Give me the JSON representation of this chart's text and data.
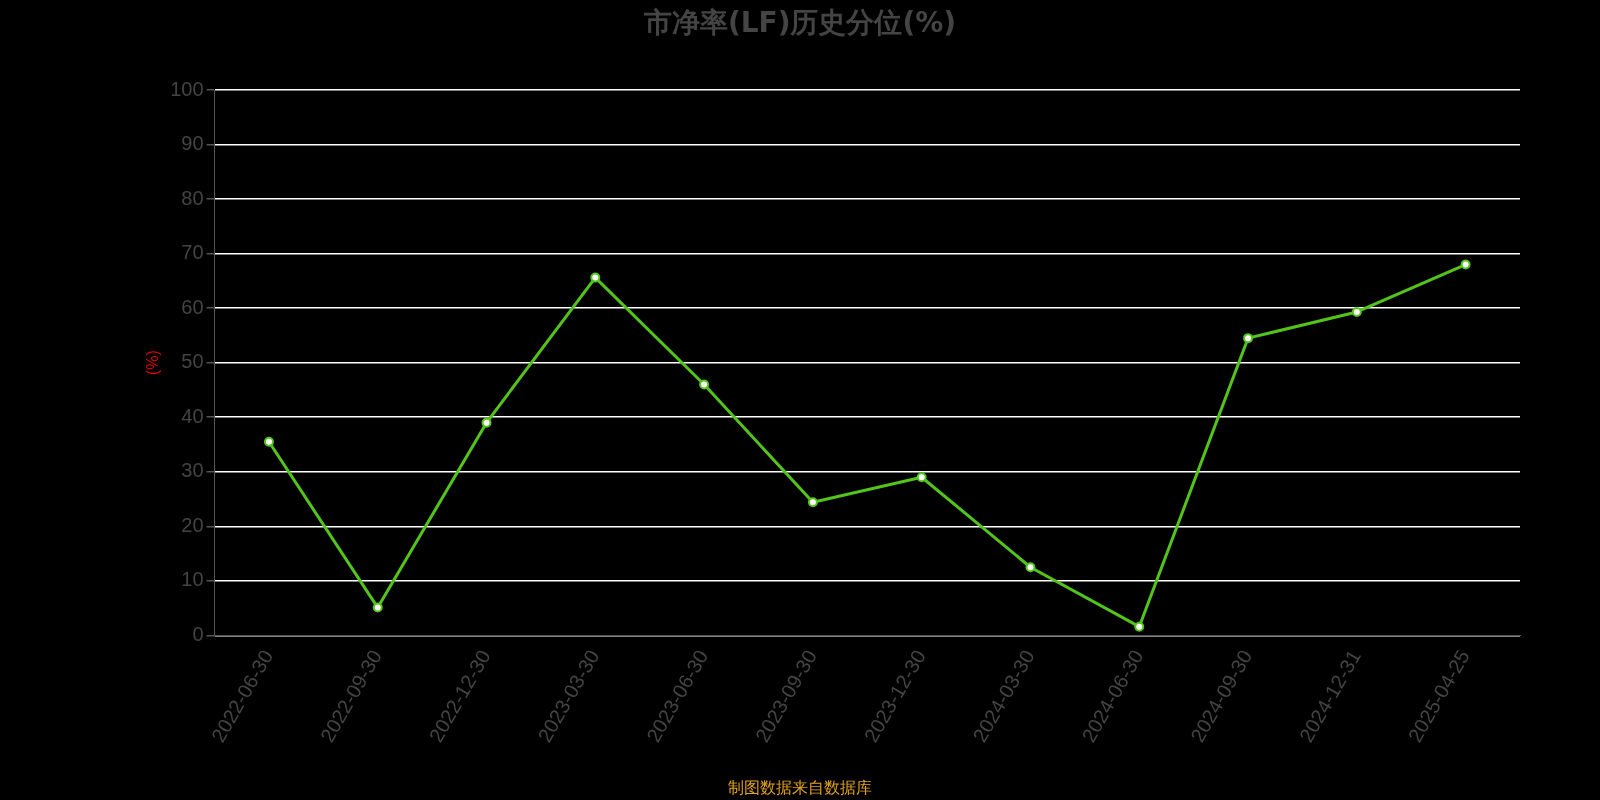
{
  "chart_data": {
    "type": "line",
    "title": "市净率(LF)历史分位(%)",
    "ylabel": "(%)",
    "categories": [
      "2022-06-30",
      "2022-09-30",
      "2022-12-30",
      "2023-03-30",
      "2023-06-30",
      "2023-09-30",
      "2023-12-30",
      "2024-03-30",
      "2024-06-30",
      "2024-09-30",
      "2024-12-31",
      "2025-04-25"
    ],
    "series": [
      {
        "color": "#52c41a",
        "values": [
          35.5,
          5.1,
          39,
          65.6,
          46,
          24.4,
          29,
          12.5,
          1.6,
          54.5,
          59.3,
          68
        ]
      }
    ],
    "ylim": [
      0,
      100
    ],
    "yticks": [
      0,
      10,
      20,
      30,
      40,
      50,
      60,
      70,
      80,
      90,
      100
    ],
    "grid": "y",
    "legend": false,
    "marker": "circle",
    "line_style": "solid",
    "annotations": [
      "制图数据来自数据库"
    ]
  }
}
